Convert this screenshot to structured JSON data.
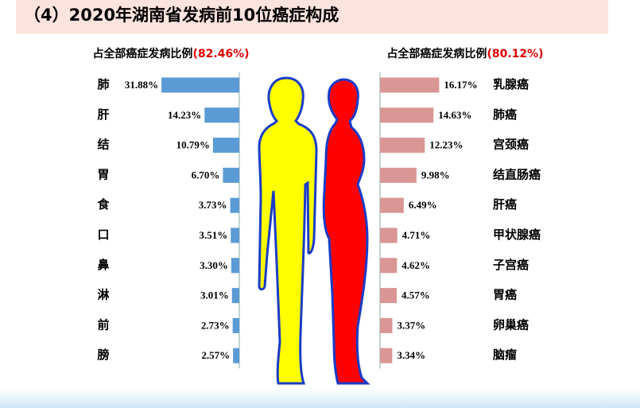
{
  "title": "（4）2020年湖南省发病前10位癌症构成",
  "chart_data": [
    {
      "type": "bar",
      "orientation": "horizontal",
      "direction": "left",
      "subtitle": "占全部癌症发病比例",
      "subtitle_highlight": "(82.46%)",
      "categories": [
        "肺",
        "肝",
        "结",
        "胃",
        "食",
        "口",
        "鼻",
        "淋",
        "前",
        "膀"
      ],
      "values": [
        31.88,
        14.23,
        10.79,
        6.7,
        3.73,
        3.51,
        3.3,
        3.01,
        2.73,
        2.57
      ],
      "value_labels": [
        "31.88%",
        "14.23%",
        "10.79%",
        "6.70%",
        "3.73%",
        "3.51%",
        "3.30%",
        "3.01%",
        "2.73%",
        "2.57%"
      ],
      "color": "#5b9bd5",
      "xlim": [
        0,
        35
      ]
    },
    {
      "type": "bar",
      "orientation": "horizontal",
      "direction": "right",
      "subtitle": "占全部癌症发病比例",
      "subtitle_highlight": "(80.12%)",
      "categories": [
        "乳腺癌",
        "肺癌",
        "宫颈癌",
        "结直肠癌",
        "肝癌",
        "甲状腺癌",
        "子宫癌",
        "胃癌",
        "卵巢癌",
        "脑瘤"
      ],
      "values": [
        16.17,
        14.63,
        12.23,
        9.98,
        6.49,
        4.71,
        4.62,
        4.57,
        3.37,
        3.34
      ],
      "value_labels": [
        "16.17%",
        "14.63%",
        "12.23%",
        "9.98%",
        "6.49%",
        "4.71%",
        "4.62%",
        "4.57%",
        "3.37%",
        "3.34%"
      ],
      "color": "#d99694",
      "xlim": [
        0,
        20
      ]
    }
  ]
}
